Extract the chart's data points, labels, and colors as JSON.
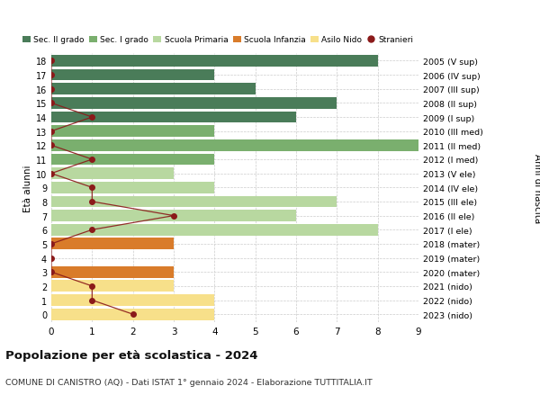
{
  "ages": [
    18,
    17,
    16,
    15,
    14,
    13,
    12,
    11,
    10,
    9,
    8,
    7,
    6,
    5,
    4,
    3,
    2,
    1,
    0
  ],
  "years_labels": [
    "2005 (V sup)",
    "2006 (IV sup)",
    "2007 (III sup)",
    "2008 (II sup)",
    "2009 (I sup)",
    "2010 (III med)",
    "2011 (II med)",
    "2012 (I med)",
    "2013 (V ele)",
    "2014 (IV ele)",
    "2015 (III ele)",
    "2016 (II ele)",
    "2017 (I ele)",
    "2018 (mater)",
    "2019 (mater)",
    "2020 (mater)",
    "2021 (nido)",
    "2022 (nido)",
    "2023 (nido)"
  ],
  "bar_values": [
    8,
    4,
    5,
    7,
    6,
    4,
    9,
    4,
    3,
    4,
    7,
    6,
    8,
    3,
    0,
    3,
    3,
    4,
    4
  ],
  "bar_colors": [
    "#4a7c59",
    "#4a7c59",
    "#4a7c59",
    "#4a7c59",
    "#4a7c59",
    "#7aaf6e",
    "#7aaf6e",
    "#7aaf6e",
    "#b8d8a0",
    "#b8d8a0",
    "#b8d8a0",
    "#b8d8a0",
    "#b8d8a0",
    "#d97c2b",
    "#d97c2b",
    "#d97c2b",
    "#f7e08a",
    "#f7e08a",
    "#f7e08a"
  ],
  "stranieri_values": [
    0,
    0,
    0,
    0,
    1,
    0,
    0,
    1,
    0,
    1,
    1,
    3,
    1,
    0,
    0,
    0,
    1,
    1,
    2
  ],
  "legend_labels": [
    "Sec. II grado",
    "Sec. I grado",
    "Scuola Primaria",
    "Scuola Infanzia",
    "Asilo Nido",
    "Stranieri"
  ],
  "legend_colors": [
    "#4a7c59",
    "#7aaf6e",
    "#b8d8a0",
    "#d97c2b",
    "#f7e08a",
    "#a02020"
  ],
  "title": "Popolazione per età scolastica - 2024",
  "subtitle": "COMUNE DI CANISTRO (AQ) - Dati ISTAT 1° gennaio 2024 - Elaborazione TUTTITALIA.IT",
  "ylabel_left": "Età alunni",
  "ylabel_right": "Anni di nascita",
  "xlim": [
    0,
    9
  ],
  "bar_height": 0.82,
  "background_color": "#ffffff",
  "grid_color": "#cccccc",
  "stranieri_color": "#8b1a1a",
  "stranieri_line_color": "#8b1a1a"
}
